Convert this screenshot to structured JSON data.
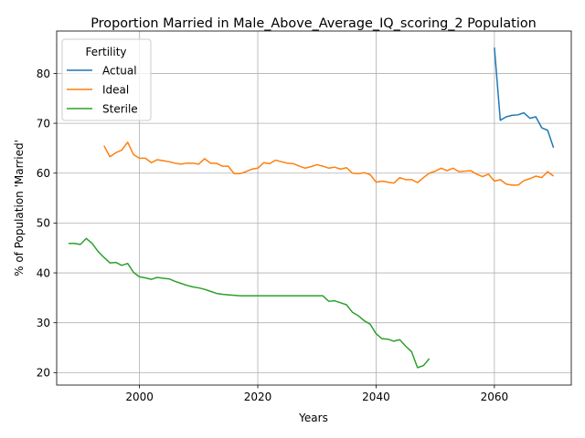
{
  "chart_data": {
    "type": "line",
    "title": "Proportion Married in Male_Above_Average_IQ_scoring_2 Population",
    "xlabel": "Years",
    "ylabel": "% of Population 'Married'",
    "xlim": [
      1986,
      2073
    ],
    "ylim": [
      17.5,
      88.5
    ],
    "xticks": [
      2000,
      2020,
      2040,
      2060
    ],
    "yticks": [
      20,
      30,
      40,
      50,
      60,
      70,
      80
    ],
    "grid": true,
    "legend": {
      "title": "Fertility",
      "position": "top-left"
    },
    "series": [
      {
        "name": "Actual",
        "color": "#1f77b4",
        "x": [
          2060,
          2061,
          2062,
          2063,
          2064,
          2065,
          2066,
          2067,
          2068,
          2069,
          2070
        ],
        "y": [
          85.2,
          70.6,
          71.3,
          71.6,
          71.7,
          72.1,
          71.0,
          71.3,
          69.1,
          68.6,
          65.1
        ]
      },
      {
        "name": "Ideal",
        "color": "#ff7f0e",
        "x": [
          1994,
          1995,
          1996,
          1997,
          1998,
          1999,
          2000,
          2001,
          2002,
          2003,
          2004,
          2005,
          2006,
          2007,
          2008,
          2009,
          2010,
          2011,
          2012,
          2013,
          2014,
          2015,
          2016,
          2017,
          2018,
          2019,
          2020,
          2021,
          2022,
          2023,
          2024,
          2025,
          2026,
          2027,
          2028,
          2029,
          2030,
          2031,
          2032,
          2033,
          2034,
          2035,
          2036,
          2037,
          2038,
          2039,
          2040,
          2041,
          2042,
          2043,
          2044,
          2045,
          2046,
          2047,
          2048,
          2049,
          2050,
          2051,
          2052,
          2053,
          2054,
          2055,
          2056,
          2057,
          2058,
          2059,
          2060,
          2061,
          2062,
          2063,
          2064,
          2065,
          2066,
          2067,
          2068,
          2069,
          2070
        ],
        "y": [
          65.5,
          63.3,
          64.1,
          64.6,
          66.2,
          63.7,
          63.0,
          63.0,
          62.1,
          62.7,
          62.5,
          62.3,
          62.0,
          61.8,
          62.0,
          62.0,
          61.8,
          62.9,
          62.0,
          62.0,
          61.4,
          61.4,
          59.9,
          59.9,
          60.3,
          60.8,
          61.0,
          62.1,
          61.9,
          62.6,
          62.3,
          62.0,
          61.9,
          61.4,
          61.0,
          61.3,
          61.7,
          61.4,
          61.0,
          61.2,
          60.8,
          61.1,
          60.0,
          59.9,
          60.1,
          59.7,
          58.2,
          58.4,
          58.2,
          58.0,
          59.1,
          58.7,
          58.7,
          58.1,
          59.1,
          60.0,
          60.4,
          61.0,
          60.5,
          61.0,
          60.3,
          60.4,
          60.5,
          59.8,
          59.3,
          59.8,
          58.4,
          58.7,
          57.8,
          57.6,
          57.6,
          58.5,
          58.9,
          59.4,
          59.1,
          60.3,
          59.4
        ]
      },
      {
        "name": "Sterile",
        "color": "#2ca02c",
        "x": [
          1988,
          1989,
          1990,
          1991,
          1992,
          1993,
          1994,
          1995,
          1996,
          1997,
          1998,
          1999,
          2000,
          2001,
          2002,
          2003,
          2004,
          2005,
          2006,
          2007,
          2008,
          2009,
          2010,
          2011,
          2012,
          2013,
          2014,
          2015,
          2016,
          2017,
          2018,
          2019,
          2020,
          2021,
          2022,
          2023,
          2024,
          2025,
          2026,
          2027,
          2028,
          2029,
          2030,
          2031,
          2032,
          2033,
          2034,
          2035,
          2036,
          2037,
          2038,
          2039,
          2040,
          2041,
          2042,
          2043,
          2044,
          2045,
          2046,
          2047,
          2048,
          2049
        ],
        "y": [
          45.9,
          45.9,
          45.7,
          46.9,
          45.9,
          44.3,
          43.1,
          42.0,
          42.1,
          41.5,
          41.9,
          40.1,
          39.2,
          39.0,
          38.7,
          39.1,
          38.9,
          38.8,
          38.3,
          37.9,
          37.5,
          37.2,
          37.0,
          36.7,
          36.3,
          35.9,
          35.7,
          35.6,
          35.5,
          35.4,
          35.4,
          35.4,
          35.4,
          35.4,
          35.4,
          35.4,
          35.4,
          35.4,
          35.4,
          35.4,
          35.4,
          35.4,
          35.4,
          35.4,
          34.3,
          34.4,
          34.0,
          33.6,
          32.1,
          31.4,
          30.4,
          29.7,
          27.8,
          26.8,
          26.7,
          26.3,
          26.6,
          25.3,
          24.2,
          21.0,
          21.4,
          22.8
        ]
      }
    ]
  }
}
